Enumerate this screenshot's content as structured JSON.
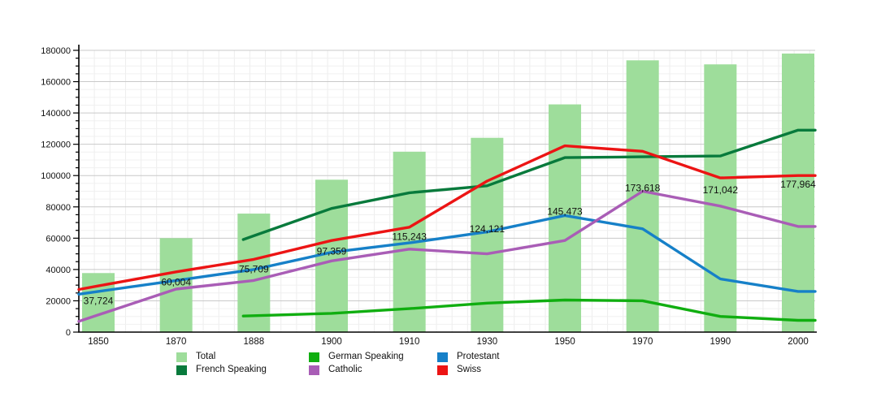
{
  "chart_data": {
    "type": "combo bar+line",
    "title": "",
    "xlabel": "",
    "ylabel": "",
    "categories": [
      "1850",
      "1870",
      "1888",
      "1900",
      "1910",
      "1930",
      "1950",
      "1970",
      "1990",
      "2000"
    ],
    "bar_series": {
      "name": "Total",
      "color": "#9edd9b",
      "values": [
        37724,
        60004,
        75709,
        97359,
        115243,
        124121,
        145473,
        173618,
        171042,
        177964
      ],
      "data_labels": [
        "37,724",
        "60,004",
        "75,709",
        "97,359",
        "115,243",
        "124,121",
        "145,473",
        "173,618",
        "171,042",
        "177,964"
      ]
    },
    "line_series": [
      {
        "name": "German Speaking",
        "color": "#10ae10",
        "values": [
          null,
          null,
          10500,
          12000,
          15000,
          18500,
          20500,
          20000,
          10000,
          7500
        ]
      },
      {
        "name": "French Speaking",
        "color": "#087a3c",
        "values": [
          null,
          null,
          61500,
          79000,
          89000,
          93500,
          111500,
          112000,
          112500,
          129000
        ]
      },
      {
        "name": "Protestant",
        "color": "#1680c8",
        "values": [
          26000,
          33000,
          40000,
          51000,
          57000,
          64000,
          74500,
          66000,
          34000,
          26000
        ]
      },
      {
        "name": "Catholic",
        "color": "#a95db6",
        "values": [
          11000,
          27500,
          33000,
          45500,
          53000,
          50000,
          58500,
          90000,
          80500,
          67500
        ]
      },
      {
        "name": "Swiss",
        "color": "#ec1414",
        "values": [
          29500,
          38500,
          46500,
          58500,
          67000,
          96500,
          119000,
          115500,
          98500,
          100000
        ]
      }
    ],
    "line_values_note": "line series values estimated from plotted pixel positions",
    "ylim": [
      0,
      180000
    ],
    "y_tick_step": 20000,
    "y_minor_step": 5000,
    "y_tick_labels": [
      "0",
      "20000",
      "40000",
      "60000",
      "80000",
      "100000",
      "120000",
      "140000",
      "160000",
      "180000"
    ],
    "grid": {
      "horizontal_major": true,
      "horizontal_minor": true,
      "vertical_minor": true
    },
    "legend": {
      "position": "bottom",
      "rows": [
        [
          "Total",
          "German Speaking",
          "Protestant"
        ],
        [
          "French Speaking",
          "Catholic",
          "Swiss"
        ]
      ]
    }
  },
  "colors": {
    "background": "#ffffff",
    "axis": "#000000",
    "grid_major": "#c9c9c9",
    "grid_minor": "#f0f0f0",
    "grid_vertical": "#ededed",
    "text": "#111111"
  }
}
